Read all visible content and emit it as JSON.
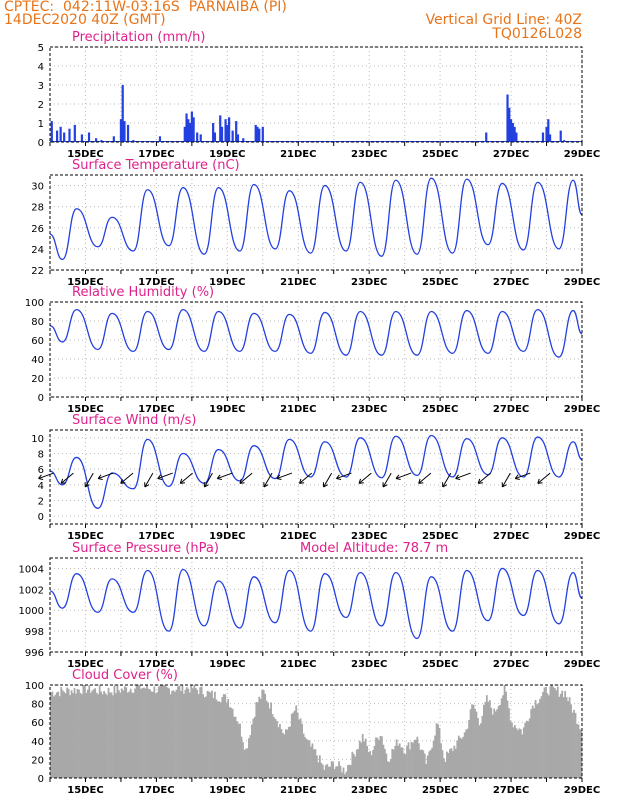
{
  "header": {
    "line1": "CPTEC:  042:11W-03:16S  PARNAIBA (PI)",
    "line2": "14DEC2020 40Z (GMT)",
    "grid_line": "Vertical Grid Line: 40Z",
    "code": "TQ0126L028"
  },
  "x_labels": [
    "15DEC",
    "17DEC",
    "19DEC",
    "21DEC",
    "23DEC",
    "25DEC",
    "27DEC",
    "29DEC"
  ],
  "colors": {
    "series": "#2340e0",
    "title": "#e0218a",
    "header": "#e8741a",
    "cloud": "#a8a8a8"
  },
  "chart_data": [
    {
      "type": "bar",
      "title": "Precipitation (mm/h)",
      "ylim": [
        0,
        5
      ],
      "yticks": [
        0,
        1,
        2,
        3,
        4,
        5
      ],
      "x_start_day": 14.0,
      "x_step_days": 0.125,
      "values": [
        1.2,
        0.5,
        0.2,
        1.0,
        0.6,
        0.7,
        0.3,
        0.9,
        0.1,
        0.4,
        0.0,
        0.0,
        0.0,
        0.0,
        0.0,
        0.5,
        0.3,
        0.1,
        0.0,
        0.0,
        0.1,
        0.0,
        0.0,
        0.0,
        0.0,
        0.0,
        0.0,
        0.0,
        0.0,
        0.0,
        0.0,
        0.0,
        0.0,
        0.1,
        0.2,
        0.0,
        0.0,
        0.0,
        0.0,
        0.0,
        0.0,
        0.0,
        0.0,
        0.0,
        0.0,
        0.0,
        0.0,
        0.0,
        0.0,
        0.0,
        0.0,
        0.0,
        0.0,
        0.0,
        0.0,
        0.0,
        0.0,
        0.0,
        0.0,
        0.0,
        0.0,
        0.0,
        0.0,
        0.0,
        0.0,
        0.0,
        0.0,
        0.0,
        0.0,
        0.0,
        0.0,
        0.0,
        0.0,
        0.0,
        0.0,
        0.0,
        0.0,
        0.0,
        0.0,
        0.0,
        0.0,
        0.0,
        0.0,
        0.0,
        0.0,
        0.0,
        0.0,
        0.0,
        0.0,
        0.0,
        0.0,
        0.0,
        0.0,
        0.0,
        0.0,
        0.0,
        0.0,
        0.0,
        0.0,
        0.0,
        0.0,
        0.0,
        0.0,
        0.0,
        0.0,
        0.0,
        0.0,
        0.0,
        0.0,
        0.0,
        0.0,
        0.0,
        0.0,
        0.0,
        0.0,
        0.0,
        0.0,
        0.0,
        0.0,
        0.0,
        0.0,
        0.0,
        0.0
      ],
      "extra": [
        [
          14.05,
          1.1
        ],
        [
          14.2,
          0.6
        ],
        [
          14.3,
          0.8
        ],
        [
          14.4,
          0.5
        ],
        [
          14.55,
          0.7
        ],
        [
          14.7,
          0.9
        ],
        [
          14.9,
          0.4
        ],
        [
          15.1,
          0.5
        ],
        [
          15.3,
          0.2
        ],
        [
          15.45,
          0.1
        ],
        [
          15.8,
          0.3
        ],
        [
          16.0,
          1.2
        ],
        [
          16.05,
          3.0
        ],
        [
          16.1,
          1.1
        ],
        [
          16.2,
          0.9
        ],
        [
          16.35,
          0.1
        ],
        [
          17.1,
          0.3
        ],
        [
          17.8,
          0.8
        ],
        [
          17.85,
          1.5
        ],
        [
          17.9,
          1.2
        ],
        [
          17.95,
          1.0
        ],
        [
          18.0,
          1.6
        ],
        [
          18.05,
          1.3
        ],
        [
          18.15,
          0.5
        ],
        [
          18.25,
          0.4
        ],
        [
          18.6,
          1.0
        ],
        [
          18.65,
          0.5
        ],
        [
          18.8,
          1.4
        ],
        [
          18.85,
          0.8
        ],
        [
          18.95,
          1.2
        ],
        [
          19.0,
          0.9
        ],
        [
          19.05,
          1.3
        ],
        [
          19.15,
          0.6
        ],
        [
          19.25,
          1.1
        ],
        [
          19.3,
          0.4
        ],
        [
          19.45,
          0.2
        ],
        [
          19.8,
          0.9
        ],
        [
          19.85,
          0.8
        ],
        [
          19.9,
          0.7
        ],
        [
          20.0,
          0.8
        ],
        [
          20.2,
          0.05
        ],
        [
          21.0,
          0.05
        ],
        [
          22.0,
          0.05
        ],
        [
          23.0,
          0.05
        ],
        [
          24.0,
          0.05
        ],
        [
          25.0,
          0.05
        ],
        [
          26.3,
          0.5
        ],
        [
          26.9,
          2.5
        ],
        [
          26.95,
          1.8
        ],
        [
          27.0,
          1.2
        ],
        [
          27.05,
          1.0
        ],
        [
          27.1,
          0.8
        ],
        [
          27.15,
          0.5
        ],
        [
          27.9,
          0.5
        ],
        [
          28.0,
          0.8
        ],
        [
          28.05,
          1.2
        ],
        [
          28.1,
          0.4
        ],
        [
          28.4,
          0.6
        ],
        [
          28.5,
          0.1
        ]
      ]
    },
    {
      "type": "line",
      "title": "Surface Temperature (nC)",
      "ylim": [
        22,
        31
      ],
      "yticks": [
        22,
        24,
        26,
        28,
        30
      ],
      "daily_max": [
        27.8,
        27.0,
        29.6,
        29.8,
        29.8,
        30.1,
        29.5,
        30.0,
        30.3,
        30.5,
        30.7,
        30.6,
        30.2,
        30.3,
        30.5
      ],
      "daily_min": [
        23.0,
        24.2,
        23.8,
        24.3,
        23.5,
        23.8,
        24.0,
        23.6,
        23.8,
        23.3,
        23.5,
        23.6,
        24.4,
        23.9,
        24.0
      ]
    },
    {
      "type": "line",
      "title": "Relative Humidity (%)",
      "ylim": [
        0,
        100
      ],
      "yticks": [
        0,
        20,
        40,
        60,
        80,
        100
      ],
      "daily_max": [
        92,
        88,
        90,
        92,
        90,
        88,
        87,
        89,
        90,
        90,
        90,
        91,
        90,
        92,
        91
      ],
      "daily_min": [
        58,
        50,
        48,
        50,
        48,
        48,
        48,
        46,
        44,
        44,
        44,
        46,
        46,
        48,
        42
      ]
    },
    {
      "type": "line",
      "title": "Surface Wind (m/s)",
      "ylim": [
        -1,
        11
      ],
      "yticks": [
        0,
        2,
        4,
        6,
        8,
        10
      ],
      "daily_max": [
        7.5,
        5.5,
        9.8,
        8.0,
        8.5,
        9.0,
        9.8,
        9.5,
        10.0,
        10.2,
        10.3,
        9.9,
        10.0,
        10.1,
        9.5
      ],
      "daily_min": [
        4.0,
        1.0,
        3.5,
        3.8,
        4.2,
        4.5,
        4.8,
        5.0,
        5.0,
        4.9,
        5.2,
        5.0,
        5.3,
        5.0,
        5.0
      ]
    },
    {
      "type": "line",
      "title": "Surface Pressure (hPa)",
      "annotation": "Model Altitude: 78.7 m",
      "ylim": [
        996,
        1005
      ],
      "yticks": [
        996,
        998,
        1000,
        1002,
        1004
      ],
      "daily_max": [
        1003.5,
        1003.0,
        1003.8,
        1003.9,
        1002.8,
        1003.2,
        1003.8,
        1003.5,
        1003.6,
        1003.6,
        1003.2,
        1003.8,
        1004.0,
        1003.8,
        1003.6
      ],
      "daily_min": [
        1000.2,
        999.8,
        999.8,
        998.0,
        998.5,
        998.3,
        998.8,
        998.0,
        999.3,
        998.5,
        997.3,
        998.0,
        999.0,
        999.5,
        998.7
      ]
    },
    {
      "type": "area",
      "title": "Cloud Cover (%)",
      "ylim": [
        0,
        100
      ],
      "yticks": [
        0,
        20,
        40,
        60,
        80,
        100
      ],
      "levels": [
        [
          14.0,
          92
        ],
        [
          14.5,
          94
        ],
        [
          15.0,
          96
        ],
        [
          15.5,
          93
        ],
        [
          16.0,
          95
        ],
        [
          16.5,
          98
        ],
        [
          17.0,
          95
        ],
        [
          17.5,
          96
        ],
        [
          18.0,
          97
        ],
        [
          18.5,
          90
        ],
        [
          19.0,
          85
        ],
        [
          19.3,
          60
        ],
        [
          19.5,
          30
        ],
        [
          19.8,
          80
        ],
        [
          20.0,
          92
        ],
        [
          20.3,
          70
        ],
        [
          20.6,
          45
        ],
        [
          20.9,
          75
        ],
        [
          21.2,
          40
        ],
        [
          21.5,
          25
        ],
        [
          21.7,
          10
        ],
        [
          22.0,
          15
        ],
        [
          22.3,
          8
        ],
        [
          22.6,
          30
        ],
        [
          22.8,
          45
        ],
        [
          23.0,
          25
        ],
        [
          23.3,
          50
        ],
        [
          23.5,
          20
        ],
        [
          23.8,
          40
        ],
        [
          24.0,
          30
        ],
        [
          24.3,
          45
        ],
        [
          24.6,
          15
        ],
        [
          24.9,
          60
        ],
        [
          25.1,
          20
        ],
        [
          25.4,
          35
        ],
        [
          25.7,
          50
        ],
        [
          25.9,
          80
        ],
        [
          26.1,
          60
        ],
        [
          26.3,
          85
        ],
        [
          26.5,
          70
        ],
        [
          26.8,
          95
        ],
        [
          27.0,
          60
        ],
        [
          27.3,
          50
        ],
        [
          27.6,
          80
        ],
        [
          28.0,
          95
        ],
        [
          28.5,
          92
        ],
        [
          29.0,
          50
        ]
      ]
    }
  ]
}
